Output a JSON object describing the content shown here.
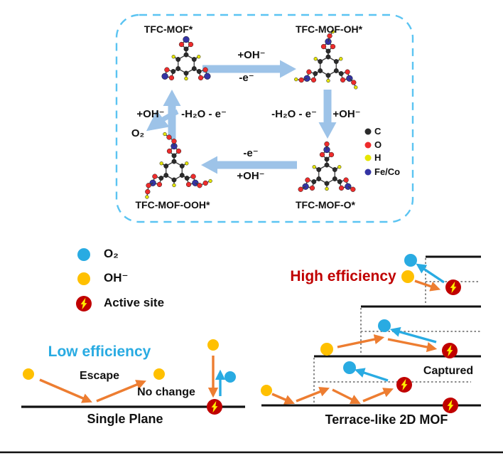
{
  "figure": {
    "cycle": {
      "molecules": {
        "top_left": "TFC-MOF*",
        "top_right": "TFC-MOF-OH*",
        "bottom_left": "TFC-MOF-OOH*",
        "bottom_right": "TFC-MOF-O*"
      },
      "steps": {
        "top_above": "+OH⁻",
        "top_below": "-e⁻",
        "right_left": "-H₂O - e⁻",
        "right_right": "+OH⁻",
        "bottom_above": "-e⁻",
        "bottom_below": "+OH⁻",
        "left_left": "+OH⁻",
        "left_right": "-H₂O - e⁻",
        "o2": "O₂"
      },
      "legend": [
        {
          "label": "C",
          "color": "#2b2b2b"
        },
        {
          "label": "O",
          "color": "#ee2c2c"
        },
        {
          "label": "H",
          "color": "#e6e600"
        },
        {
          "label": "Fe/Co",
          "color": "#3434a4"
        }
      ]
    },
    "bottom": {
      "legend": [
        {
          "label": "O₂",
          "color": "#29abe2"
        },
        {
          "label": "OH⁻",
          "color": "#ffc000"
        },
        {
          "label": "Active site",
          "color": "#c00000"
        }
      ],
      "single_plane": {
        "efficiency": "Low efficiency",
        "escape": "Escape",
        "no_change": "No change",
        "title": "Single Plane"
      },
      "terrace": {
        "efficiency": "High efficiency",
        "captured": "Captured",
        "title": "Terrace-like 2D MOF"
      }
    },
    "colors": {
      "block_arrow": "#9dc3e8",
      "dashed_border": "#5bc4f2",
      "orange": "#ed7d31",
      "cyan": "#29abe2",
      "yellow": "#ffc000",
      "active_red": "#c00000",
      "bolt_yellow": "#ffee00",
      "surface": "#111111",
      "dotted": "#8a8a8a",
      "low_eff_text": "#29abe2",
      "high_eff_text": "#c00000",
      "text": "#111111"
    }
  }
}
